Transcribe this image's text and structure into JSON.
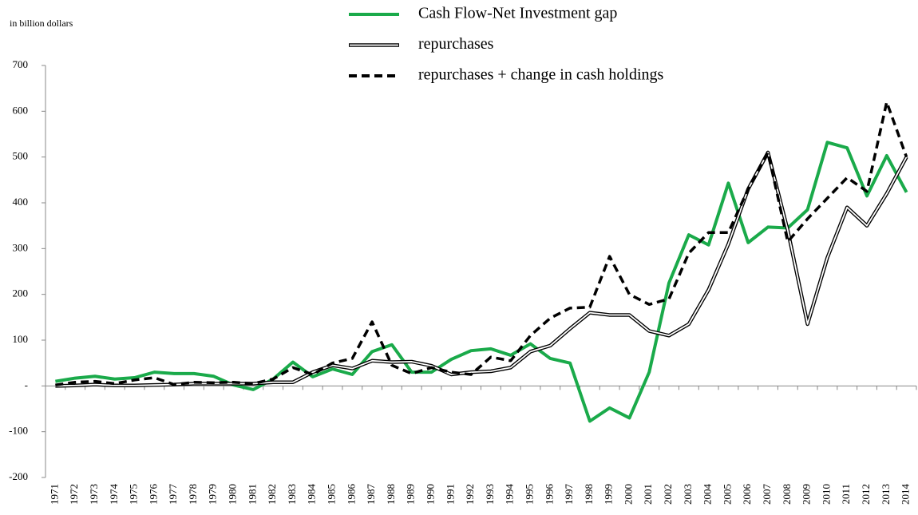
{
  "chart_data": {
    "type": "line",
    "subtitle": "in billion dollars",
    "categories": [
      "1971",
      "1972",
      "1973",
      "1974",
      "1975",
      "1976",
      "1977",
      "1978",
      "1979",
      "1980",
      "1981",
      "1982",
      "1983",
      "1984",
      "1985",
      "1986",
      "1987",
      "1988",
      "1989",
      "1990",
      "1991",
      "1992",
      "1993",
      "1994",
      "1995",
      "1996",
      "1997",
      "1998",
      "1999",
      "2000",
      "2001",
      "2002",
      "2003",
      "2004",
      "2005",
      "2006",
      "2007",
      "2008",
      "2009",
      "2010",
      "2011",
      "2012",
      "2013",
      "2014"
    ],
    "series": [
      {
        "name": "Cash Flow-Net Investment gap",
        "color": "#1aaa4a",
        "style": "solid",
        "values": [
          10,
          17,
          21,
          15,
          18,
          30,
          27,
          27,
          21,
          2,
          -8,
          15,
          52,
          20,
          37,
          25,
          75,
          90,
          30,
          30,
          58,
          77,
          81,
          67,
          92,
          60,
          50,
          -77,
          -48,
          -70,
          30,
          225,
          330,
          308,
          443,
          313,
          347,
          345,
          385,
          532,
          520,
          415,
          503,
          423
        ]
      },
      {
        "name": "repurchases",
        "color": "#000000",
        "style": "double",
        "values": [
          0,
          1,
          3,
          1,
          1,
          2,
          3,
          5,
          5,
          5,
          5,
          8,
          8,
          30,
          45,
          38,
          55,
          52,
          53,
          44,
          25,
          30,
          32,
          40,
          75,
          88,
          125,
          160,
          155,
          155,
          120,
          110,
          135,
          210,
          310,
          430,
          510,
          340,
          135,
          280,
          390,
          350,
          420,
          500
        ]
      },
      {
        "name": "repurchases + change in cash holdings",
        "color": "#000000",
        "style": "dashed",
        "values": [
          2,
          8,
          10,
          5,
          13,
          18,
          3,
          8,
          7,
          8,
          5,
          15,
          40,
          25,
          50,
          60,
          140,
          45,
          27,
          40,
          30,
          25,
          63,
          55,
          110,
          148,
          170,
          172,
          283,
          200,
          178,
          190,
          290,
          335,
          335,
          430,
          510,
          315,
          365,
          410,
          455,
          425,
          620,
          500
        ]
      }
    ],
    "ylim": [
      -200,
      700
    ],
    "yticks": [
      -200,
      -100,
      {
        "value": 0,
        "label": "-"
      },
      100,
      200,
      300,
      400,
      500,
      600,
      700
    ]
  }
}
